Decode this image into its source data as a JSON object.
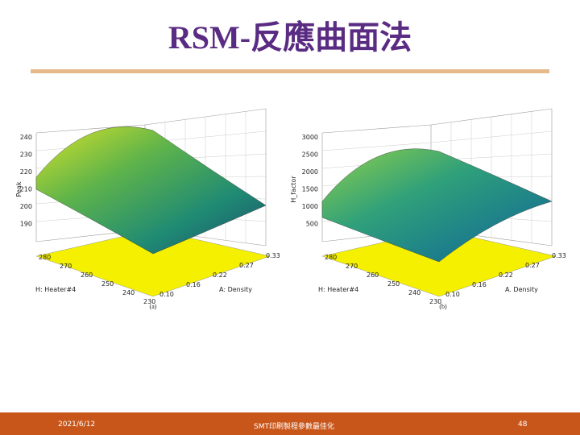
{
  "header": {
    "title": "RSM-反應曲面法"
  },
  "figures": [
    {
      "caption": "(a)",
      "z_label": "Peak",
      "z_ticks": [
        "240",
        "230",
        "220",
        "210",
        "200",
        "190"
      ],
      "x_label": "H: Heater#4",
      "x_ticks": [
        "280",
        "270",
        "260",
        "250",
        "240",
        "230"
      ],
      "y_label": "A: Density",
      "y_ticks": [
        "0.10",
        "0.16",
        "0.22",
        "0.27",
        "0.33"
      ]
    },
    {
      "caption": "(b)",
      "z_label": "H_factor",
      "z_ticks": [
        "3000",
        "2500",
        "2000",
        "1500",
        "1000",
        "500"
      ],
      "x_label": "H: Heater#4",
      "x_ticks": [
        "280",
        "270",
        "260",
        "250",
        "240",
        "230"
      ],
      "y_label": "A. Density",
      "y_ticks": [
        "0.10",
        "0.16",
        "0.22",
        "0.27",
        "0.33"
      ]
    }
  ],
  "footer": {
    "date": "2021/6/12",
    "subject": "SMT印刷製程參數最佳化",
    "page": "48"
  }
}
